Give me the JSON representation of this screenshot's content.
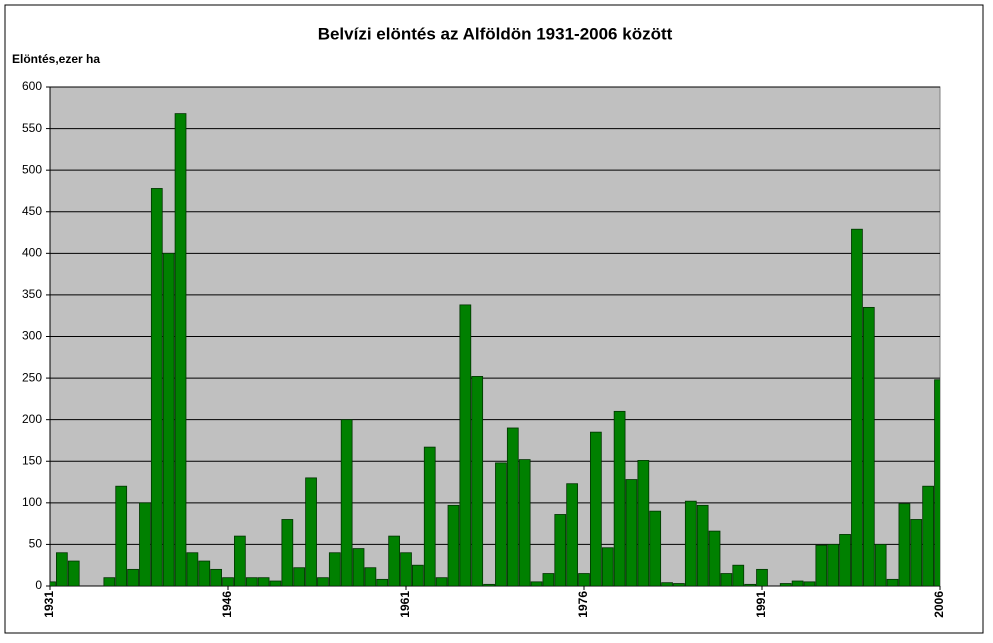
{
  "chart_data": {
    "type": "bar",
    "title": "Belvízi elöntés az Alföldön 1931-2006 között",
    "y_label": "Elöntés,ezer ha",
    "categories": [
      "1931",
      null,
      null,
      null,
      null,
      null,
      null,
      null,
      null,
      null,
      null,
      null,
      null,
      null,
      null,
      "1946",
      null,
      null,
      null,
      null,
      null,
      null,
      null,
      null,
      null,
      null,
      null,
      null,
      null,
      null,
      "1961",
      null,
      null,
      null,
      null,
      null,
      null,
      null,
      null,
      null,
      null,
      null,
      null,
      null,
      null,
      "1976",
      null,
      null,
      null,
      null,
      null,
      null,
      null,
      null,
      null,
      null,
      null,
      null,
      null,
      null,
      "1991",
      null,
      null,
      null,
      null,
      null,
      null,
      null,
      null,
      null,
      null,
      null,
      null,
      null,
      null,
      "2006"
    ],
    "values": [
      5,
      40,
      30,
      0,
      0,
      10,
      120,
      20,
      100,
      478,
      400,
      568,
      40,
      30,
      20,
      10,
      60,
      10,
      10,
      6,
      80,
      22,
      130,
      10,
      40,
      200,
      45,
      22,
      8,
      60,
      40,
      25,
      167,
      10,
      97,
      338,
      252,
      2,
      148,
      190,
      152,
      5,
      15,
      86,
      123,
      15,
      185,
      46,
      210,
      128,
      151,
      90,
      4,
      3,
      102,
      97,
      66,
      15,
      25,
      2,
      20,
      0,
      3,
      6,
      5,
      49,
      50,
      62,
      429,
      335,
      50,
      8,
      99,
      80,
      120,
      248
    ],
    "color": "#008000",
    "ylim": [
      0,
      600
    ],
    "yticks": [
      0,
      50,
      100,
      150,
      200,
      250,
      300,
      350,
      400,
      450,
      500,
      550,
      600
    ],
    "grid": true
  }
}
